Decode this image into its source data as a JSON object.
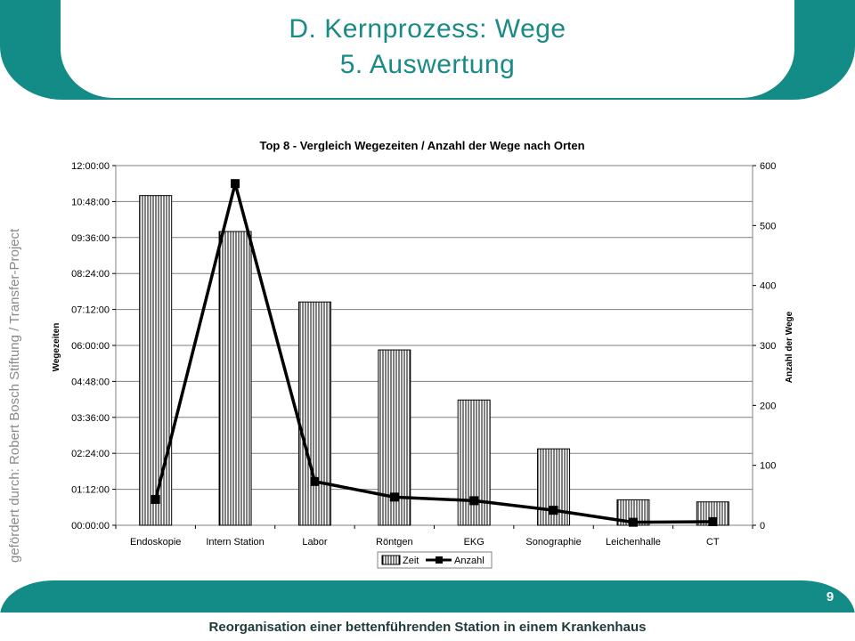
{
  "slide": {
    "title_line1": "D. Kernprozess: Wege",
    "title_line2": "5. Auswertung",
    "side_credit": "gefördert durch: Robert Bosch Stiftung / Transfer-Project",
    "footer_text": "Reorganisation einer bettenführenden Station in einem Krankenhaus",
    "page_number": "9",
    "accent_color": "#138b86"
  },
  "chart_data": {
    "type": "bar",
    "title": "Top 8 - Vergleich Wegezeiten / Anzahl der Wege nach Orten",
    "categories": [
      "Endoskopie",
      "Intern Station",
      "Labor",
      "Röntgen",
      "EKG",
      "Sonographie",
      "Leichenhalle",
      "CT"
    ],
    "ylabel": "Wegezeiten",
    "y2label": "Anzahl der Wege",
    "y_ticks": [
      "00:00:00",
      "01:12:00",
      "02:24:00",
      "03:36:00",
      "04:48:00",
      "06:00:00",
      "07:12:00",
      "08:24:00",
      "09:36:00",
      "10:48:00",
      "12:00:00"
    ],
    "y2_ticks": [
      "0",
      "100",
      "200",
      "300",
      "400",
      "500",
      "600"
    ],
    "ylim_hours": [
      0,
      12
    ],
    "y2lim": [
      0,
      600
    ],
    "series": [
      {
        "name": "Zeit",
        "type": "bar",
        "axis": "left",
        "values_hours": [
          11.0,
          9.8,
          7.45,
          5.85,
          4.18,
          2.55,
          0.85,
          0.78
        ]
      },
      {
        "name": "Anzahl",
        "type": "line",
        "axis": "right",
        "values": [
          43,
          570,
          73,
          47,
          41,
          25,
          5,
          6
        ]
      }
    ],
    "grid": true,
    "legend": "bottom"
  }
}
